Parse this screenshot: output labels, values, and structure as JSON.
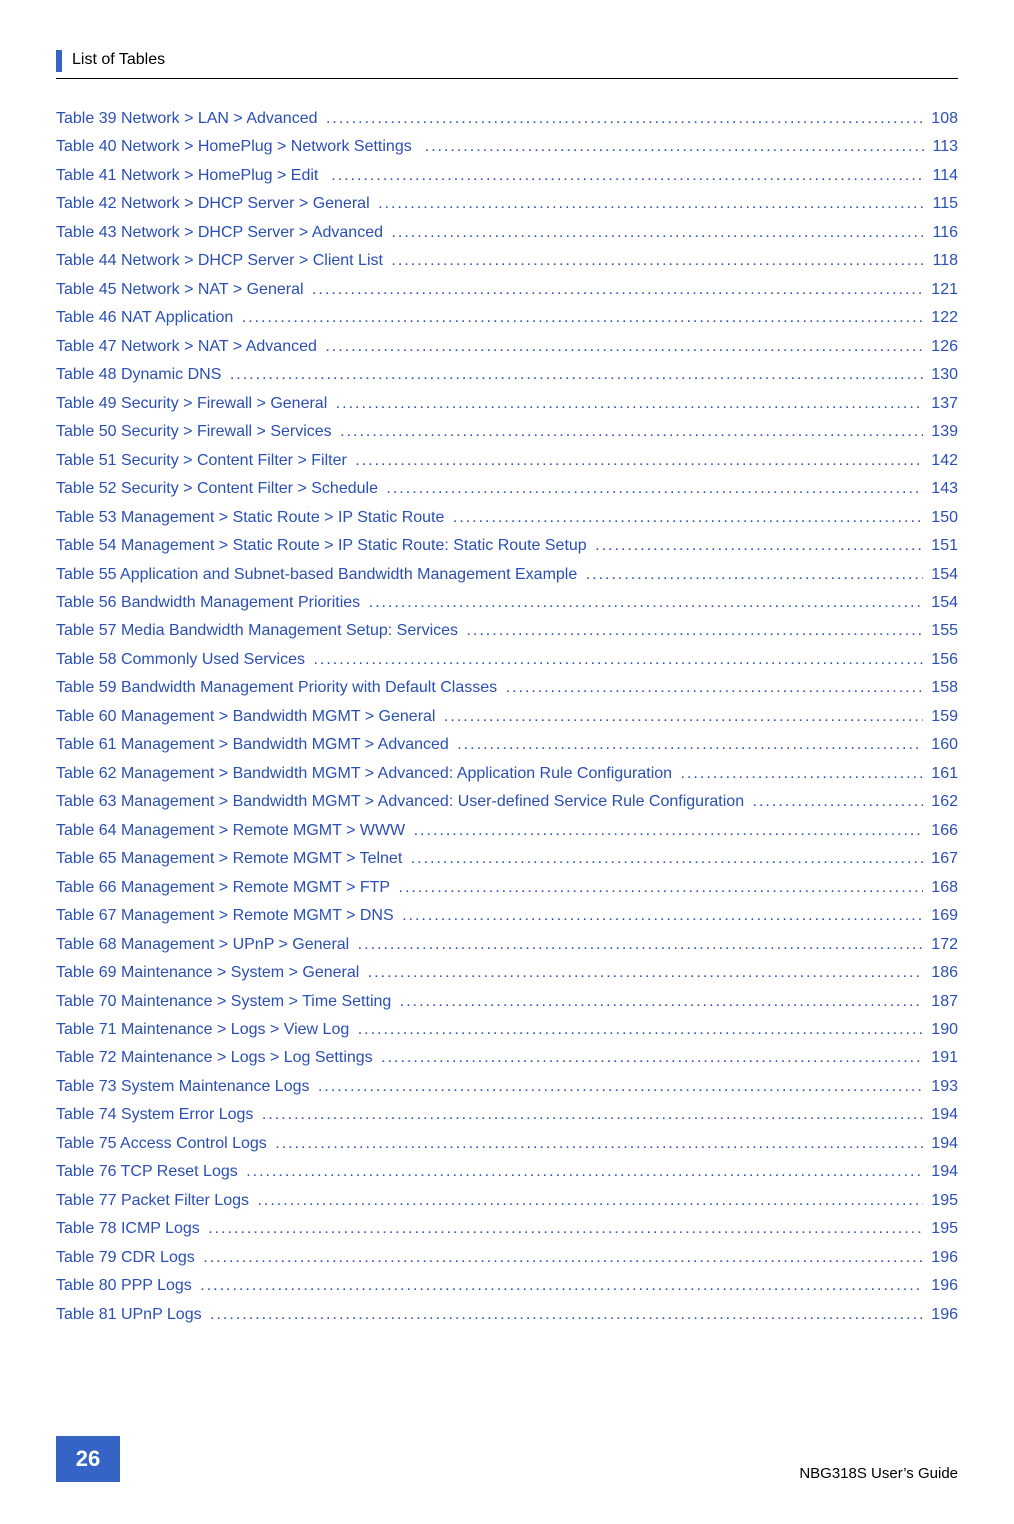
{
  "colors": {
    "accent": "#3564c6",
    "link": "#2a4fb5",
    "text": "#000000",
    "background": "#ffffff"
  },
  "header": {
    "title": "List of Tables"
  },
  "footer": {
    "page_number": "26",
    "guide_text": "NBG318S User’s Guide"
  },
  "toc": {
    "font_size": 16,
    "line_height": 1.78,
    "entries": [
      {
        "label": "Table 39 Network > LAN > Advanced",
        "page": "108"
      },
      {
        "label": "Table 40 Network > HomePlug > Network Settings  ",
        "page": "113"
      },
      {
        "label": "Table 41 Network > HomePlug > Edit  ",
        "page": "114"
      },
      {
        "label": "Table 42 Network > DHCP Server > General",
        "page": "115"
      },
      {
        "label": "Table 43 Network > DHCP Server > Advanced",
        "page": "116"
      },
      {
        "label": "Table 44 Network > DHCP Server > Client List",
        "page": "118"
      },
      {
        "label": "Table 45 Network > NAT > General",
        "page": "121"
      },
      {
        "label": "Table 46 NAT Application",
        "page": "122"
      },
      {
        "label": "Table 47 Network > NAT > Advanced",
        "page": "126"
      },
      {
        "label": "Table 48 Dynamic DNS",
        "page": "130"
      },
      {
        "label": "Table 49 Security > Firewall > General",
        "page": "137"
      },
      {
        "label": "Table 50 Security > Firewall > Services",
        "page": "139"
      },
      {
        "label": "Table 51 Security > Content Filter > Filter",
        "page": "142"
      },
      {
        "label": "Table 52 Security > Content Filter > Schedule",
        "page": "143"
      },
      {
        "label": "Table 53 Management > Static Route > IP Static Route",
        "page": "150"
      },
      {
        "label": "Table 54 Management > Static Route > IP Static Route: Static Route Setup",
        "page": "151"
      },
      {
        "label": "Table 55 Application and Subnet-based Bandwidth Management Example",
        "page": "154"
      },
      {
        "label": "Table 56 Bandwidth Management Priorities",
        "page": "154"
      },
      {
        "label": "Table 57 Media Bandwidth Management Setup: Services",
        "page": "155"
      },
      {
        "label": "Table 58 Commonly Used Services",
        "page": "156"
      },
      {
        "label": "Table 59 Bandwidth Management Priority with Default Classes",
        "page": "158"
      },
      {
        "label": "Table 60 Management > Bandwidth MGMT > General",
        "page": "159"
      },
      {
        "label": "Table 61 Management > Bandwidth MGMT > Advanced",
        "page": "160"
      },
      {
        "label": "Table 62 Management > Bandwidth MGMT > Advanced: Application Rule Configuration",
        "page": "161"
      },
      {
        "label": "Table 63 Management > Bandwidth MGMT > Advanced: User-defined Service Rule Configuration",
        "page": "162"
      },
      {
        "label": "Table 64 Management > Remote MGMT > WWW",
        "page": "166"
      },
      {
        "label": "Table 65 Management > Remote MGMT > Telnet",
        "page": "167"
      },
      {
        "label": "Table 66 Management > Remote MGMT > FTP",
        "page": "168"
      },
      {
        "label": "Table 67 Management > Remote MGMT > DNS",
        "page": "169"
      },
      {
        "label": "Table 68 Management > UPnP > General",
        "page": "172"
      },
      {
        "label": "Table 69 Maintenance > System > General",
        "page": "186"
      },
      {
        "label": "Table 70 Maintenance > System > Time Setting",
        "page": "187"
      },
      {
        "label": "Table 71 Maintenance > Logs > View Log",
        "page": "190"
      },
      {
        "label": "Table 72 Maintenance > Logs > Log Settings",
        "page": "191"
      },
      {
        "label": "Table 73 System Maintenance Logs",
        "page": "193"
      },
      {
        "label": "Table 74 System Error Logs",
        "page": "194"
      },
      {
        "label": "Table 75 Access Control Logs",
        "page": "194"
      },
      {
        "label": "Table 76 TCP Reset Logs",
        "page": "194"
      },
      {
        "label": "Table 77 Packet Filter Logs",
        "page": "195"
      },
      {
        "label": "Table 78 ICMP Logs",
        "page": "195"
      },
      {
        "label": "Table 79 CDR Logs",
        "page": "196"
      },
      {
        "label": "Table 80 PPP Logs",
        "page": "196"
      },
      {
        "label": "Table 81 UPnP Logs",
        "page": "196"
      }
    ]
  }
}
